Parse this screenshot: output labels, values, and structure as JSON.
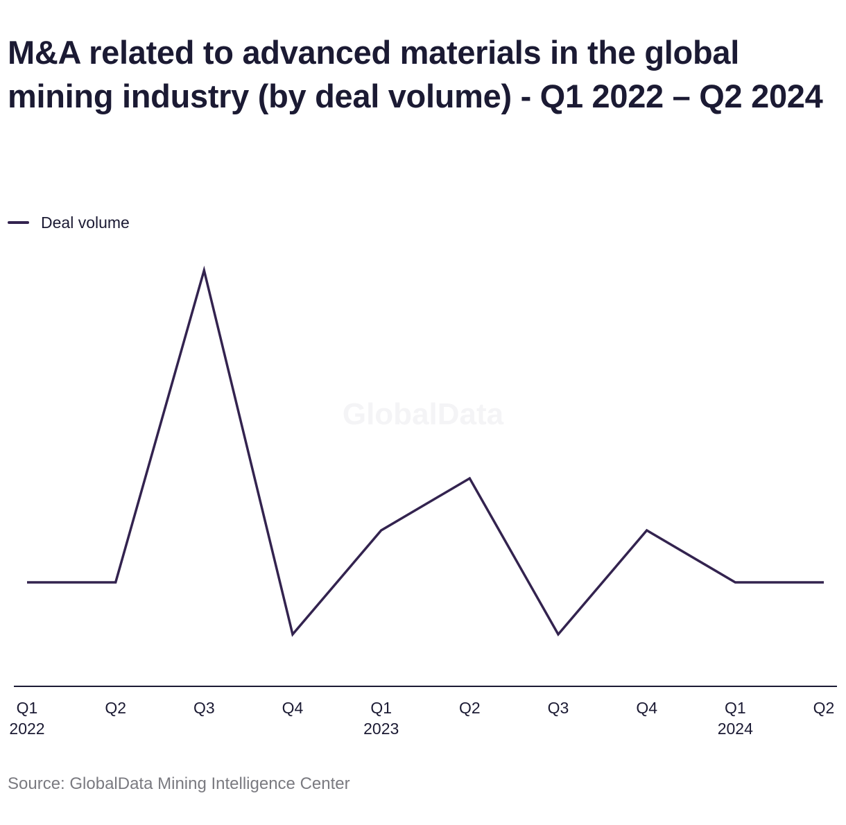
{
  "title": "M&A related to advanced materials in the global mining industry (by deal volume) - Q1 2022 – Q2 2024",
  "watermark": "GlobalData",
  "source": "Source: GlobalData Mining Intelligence Center",
  "colors": {
    "series": "#33234f",
    "text": "#1b1a33",
    "source": "#7a7a80",
    "axis": "#1b1a33"
  },
  "chart_data": {
    "type": "line",
    "title": "M&A related to advanced materials in the global mining industry (by deal volume) - Q1 2022 – Q2 2024",
    "xlabel": "",
    "ylabel": "",
    "categories": [
      "Q1 2022",
      "Q2 2022",
      "Q3 2022",
      "Q4 2022",
      "Q1 2023",
      "Q2 2023",
      "Q3 2023",
      "Q4 2023",
      "Q1 2024",
      "Q2 2024"
    ],
    "x_tick_labels": [
      {
        "quarter": "Q1",
        "year": "2022"
      },
      {
        "quarter": "Q2",
        "year": ""
      },
      {
        "quarter": "Q3",
        "year": ""
      },
      {
        "quarter": "Q4",
        "year": ""
      },
      {
        "quarter": "Q1",
        "year": "2023"
      },
      {
        "quarter": "Q2",
        "year": ""
      },
      {
        "quarter": "Q3",
        "year": ""
      },
      {
        "quarter": "Q4",
        "year": ""
      },
      {
        "quarter": "Q1",
        "year": "2024"
      },
      {
        "quarter": "Q2",
        "year": ""
      }
    ],
    "series": [
      {
        "name": "Deal volume",
        "values": [
          2,
          2,
          8,
          1,
          3,
          4,
          1,
          3,
          2,
          2
        ]
      }
    ],
    "ylim": [
      0,
      9
    ],
    "y_axis_shown": false,
    "grid": false,
    "legend": "top-left"
  }
}
